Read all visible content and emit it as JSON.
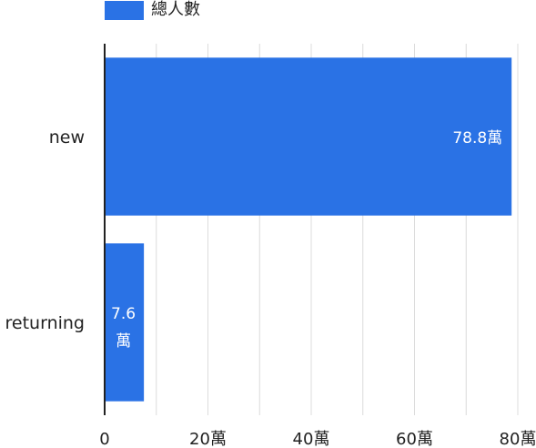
{
  "chart_data": {
    "type": "bar",
    "orientation": "horizontal",
    "categories": [
      "new",
      "returning"
    ],
    "series": [
      {
        "name": "總人數",
        "values": [
          788000,
          76000
        ],
        "color": "#2a72e5"
      }
    ],
    "data_labels": [
      "78.8萬",
      "7.6萬"
    ],
    "x_ticks": [
      {
        "value": 0,
        "label": "0"
      },
      {
        "value": 200000,
        "label": "20萬"
      },
      {
        "value": 400000,
        "label": "40萬"
      },
      {
        "value": 600000,
        "label": "60萬"
      },
      {
        "value": 800000,
        "label": "80萬"
      }
    ],
    "xlim": [
      0,
      800000
    ],
    "minor_gridlines_per_interval": 2,
    "grid": true,
    "legend_position": "top-left",
    "title": "",
    "xlabel": "",
    "ylabel": ""
  },
  "legend": {
    "label": "總人數",
    "color": "#2a72e5"
  }
}
